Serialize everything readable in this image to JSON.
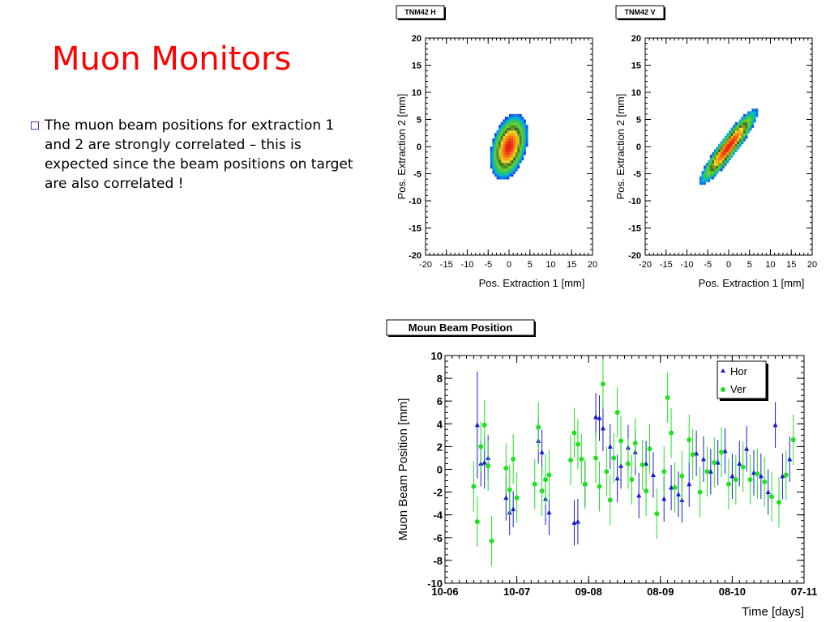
{
  "slide": {
    "title": "Muon Monitors",
    "bullets": [
      "The muon beam positions for extraction 1 and 2 are strongly correlated – this is expected since the beam positions on target are also correlated !"
    ]
  },
  "colors": {
    "title": "#ff0000",
    "bullet": "#7030a0",
    "hor": "#1a1ad4",
    "ver": "#22e022"
  },
  "chart_data": [
    {
      "type": "heatmap",
      "title": "TNM42 H",
      "xlabel": "Pos. Extraction 1 [mm]",
      "ylabel": "Pos. Extraction 2 [mm]",
      "xlim": [
        -20,
        20
      ],
      "ylim": [
        -20,
        20
      ],
      "xticks": [
        "-20",
        "-15",
        "-10",
        "-5",
        "0",
        "5",
        "10",
        "15",
        "20"
      ],
      "yticks": [
        "20",
        "15",
        "10",
        "5",
        "0",
        "-5",
        "-10",
        "-15",
        "-20"
      ],
      "distribution": {
        "center": [
          0,
          0
        ],
        "sigma_major": 6.5,
        "sigma_minor": 4,
        "angle_deg": 65
      }
    },
    {
      "type": "heatmap",
      "title": "TNM42 V",
      "xlabel": "Pos. Extraction 1 [mm]",
      "ylabel": "Pos. Extraction 2 [mm]",
      "xlim": [
        -20,
        20
      ],
      "ylim": [
        -20,
        20
      ],
      "xticks": [
        "-20",
        "-15",
        "-10",
        "-5",
        "0",
        "5",
        "10",
        "15",
        "20"
      ],
      "yticks": [
        "20",
        "15",
        "10",
        "5",
        "0",
        "-5",
        "-10",
        "-15",
        "-20"
      ],
      "distribution": {
        "center": [
          0,
          0
        ],
        "sigma_major": 10,
        "sigma_minor": 2,
        "angle_deg": 45
      }
    },
    {
      "type": "scatter",
      "title": "Moun Beam Position",
      "xlabel": "Time [days]",
      "ylabel": "Muon Beam Position [mm]",
      "xlim": [
        0,
        100
      ],
      "ylim": [
        -10,
        10
      ],
      "xticks": [
        "10-06",
        "10-07",
        "09-08",
        "08-09",
        "08-10",
        "07-11"
      ],
      "yticks": [
        "10",
        "8",
        "6",
        "4",
        "2",
        "0",
        "-2",
        "-4",
        "-6",
        "-8",
        "-10"
      ],
      "legend_position": "top-right",
      "series": [
        {
          "name": "Hor",
          "marker": "triangle",
          "x": [
            9,
            10,
            11,
            12,
            17,
            18,
            19,
            26,
            27,
            28,
            29,
            36,
            37,
            39,
            42,
            43,
            44,
            46,
            48,
            49,
            51,
            53,
            54,
            56,
            58,
            61,
            63,
            65,
            66,
            68,
            70,
            72,
            74,
            76,
            78,
            80,
            82,
            84,
            86,
            88,
            90,
            92,
            94,
            96
          ],
          "y": [
            3.9,
            0.5,
            0.6,
            1.0,
            -2.5,
            -3.8,
            -3.5,
            2.5,
            1.5,
            -2.6,
            -3.8,
            -4.7,
            -4.6,
            -1.3,
            4.6,
            4.5,
            3.6,
            2.0,
            -0.8,
            0.3,
            1.9,
            1.5,
            -2.3,
            0.5,
            -0.5,
            -2.6,
            -1.6,
            -2.2,
            -2.7,
            -1.3,
            1.4,
            0.9,
            -0.2,
            0.6,
            1.6,
            -0.6,
            0.5,
            1.8,
            -0.3,
            -0.6,
            -2.0,
            3.9,
            -0.6,
            0.9
          ],
          "err": [
            4.7,
            2.0,
            2.3,
            2.0,
            2.0,
            2.0,
            1.6,
            2.0,
            2.0,
            2.3,
            2.0,
            2.0,
            2.0,
            2.0,
            2.1,
            2.0,
            2.0,
            2.0,
            2.1,
            2.0,
            2.0,
            2.0,
            2.0,
            2.0,
            2.0,
            2.0,
            2.0,
            2.0,
            2.0,
            2.0,
            2.0,
            2.0,
            2.0,
            2.0,
            2.0,
            2.0,
            2.0,
            2.0,
            2.0,
            2.0,
            2.0,
            2.0,
            2.0,
            2.0
          ]
        },
        {
          "name": "Ver",
          "marker": "circle",
          "x": [
            8,
            9,
            10,
            11,
            12,
            13,
            17,
            18,
            19,
            20,
            25,
            26,
            27,
            28,
            29,
            35,
            36,
            37,
            38,
            39,
            42,
            43,
            44,
            45,
            46,
            47,
            48,
            49,
            51,
            52,
            53,
            55,
            56,
            57,
            59,
            61,
            62,
            63,
            64,
            66,
            68,
            69,
            71,
            73,
            75,
            77,
            79,
            81,
            83,
            85,
            87,
            89,
            91,
            93,
            95,
            97
          ],
          "y": [
            -1.5,
            -4.6,
            2.0,
            3.9,
            0.3,
            -6.3,
            0.1,
            -1.8,
            0.9,
            -2.5,
            -1.3,
            3.7,
            -1.9,
            -0.9,
            -0.5,
            0.8,
            3.2,
            2.2,
            0.9,
            -1.3,
            1.0,
            -1.5,
            7.5,
            -0.2,
            -2.7,
            1.0,
            5.0,
            2.5,
            0.5,
            -0.9,
            2.3,
            0.4,
            -1.9,
            1.8,
            -3.9,
            -0.2,
            6.3,
            3.2,
            -1.6,
            -0.6,
            2.6,
            1.3,
            -2.0,
            -0.2,
            0.6,
            1.5,
            -1.3,
            -0.9,
            0.2,
            -0.9,
            -0.4,
            -1.1,
            -2.4,
            -2.9,
            -0.5,
            2.6
          ]
        }
      ]
    }
  ]
}
